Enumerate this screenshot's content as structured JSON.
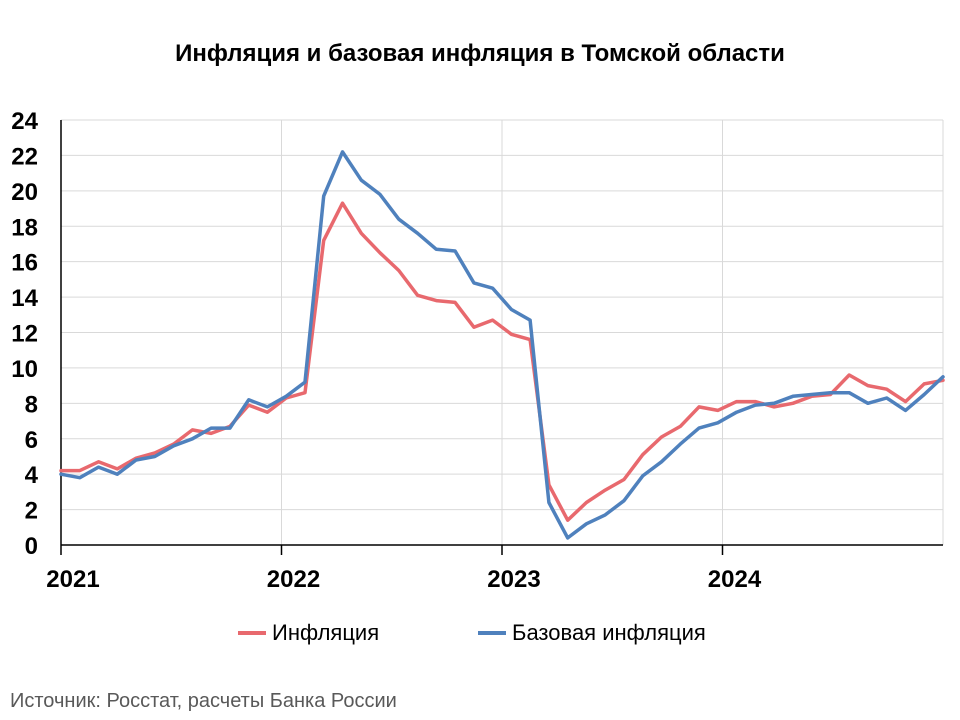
{
  "chart_data": {
    "type": "line",
    "title": "Инфляция и базовая инфляция в Томской области",
    "xlabel": "",
    "ylabel": "",
    "ylim": [
      0,
      24
    ],
    "yticks": [
      0,
      2,
      4,
      6,
      8,
      10,
      12,
      14,
      16,
      18,
      20,
      22,
      24
    ],
    "x_tick_labels": [
      "2021",
      "2022",
      "2023",
      "2024"
    ],
    "x_range": [
      0,
      48
    ],
    "grid": true,
    "legend_position": "bottom",
    "series": [
      {
        "name": "Инфляция",
        "color": "#E8696E",
        "values": [
          4.2,
          4.2,
          4.7,
          4.3,
          4.9,
          5.2,
          5.7,
          6.5,
          6.3,
          6.7,
          7.9,
          7.5,
          8.3,
          8.6,
          17.2,
          19.3,
          17.6,
          16.5,
          15.5,
          14.1,
          13.8,
          13.7,
          12.3,
          12.7,
          11.9,
          11.6,
          3.4,
          1.4,
          2.4,
          3.1,
          3.7,
          5.1,
          6.1,
          6.7,
          7.8,
          7.6,
          8.1,
          8.1,
          7.8,
          8.0,
          8.4,
          8.5,
          9.6,
          9.0,
          8.8,
          8.1,
          9.1,
          9.3
        ]
      },
      {
        "name": "Базовая инфляция",
        "color": "#4F81BD",
        "values": [
          4.0,
          3.8,
          4.4,
          4.0,
          4.8,
          5.0,
          5.6,
          6.0,
          6.6,
          6.6,
          8.2,
          7.8,
          8.4,
          9.2,
          19.7,
          22.2,
          20.6,
          19.8,
          18.4,
          17.6,
          16.7,
          16.6,
          14.8,
          14.5,
          13.3,
          12.7,
          2.4,
          0.4,
          1.2,
          1.7,
          2.5,
          3.9,
          4.7,
          5.7,
          6.6,
          6.9,
          7.5,
          7.9,
          8.0,
          8.4,
          8.5,
          8.6,
          8.6,
          8.0,
          8.3,
          7.6,
          8.5,
          9.5
        ]
      }
    ]
  },
  "source_text": "Источник: Росстат, расчеты Банка России"
}
